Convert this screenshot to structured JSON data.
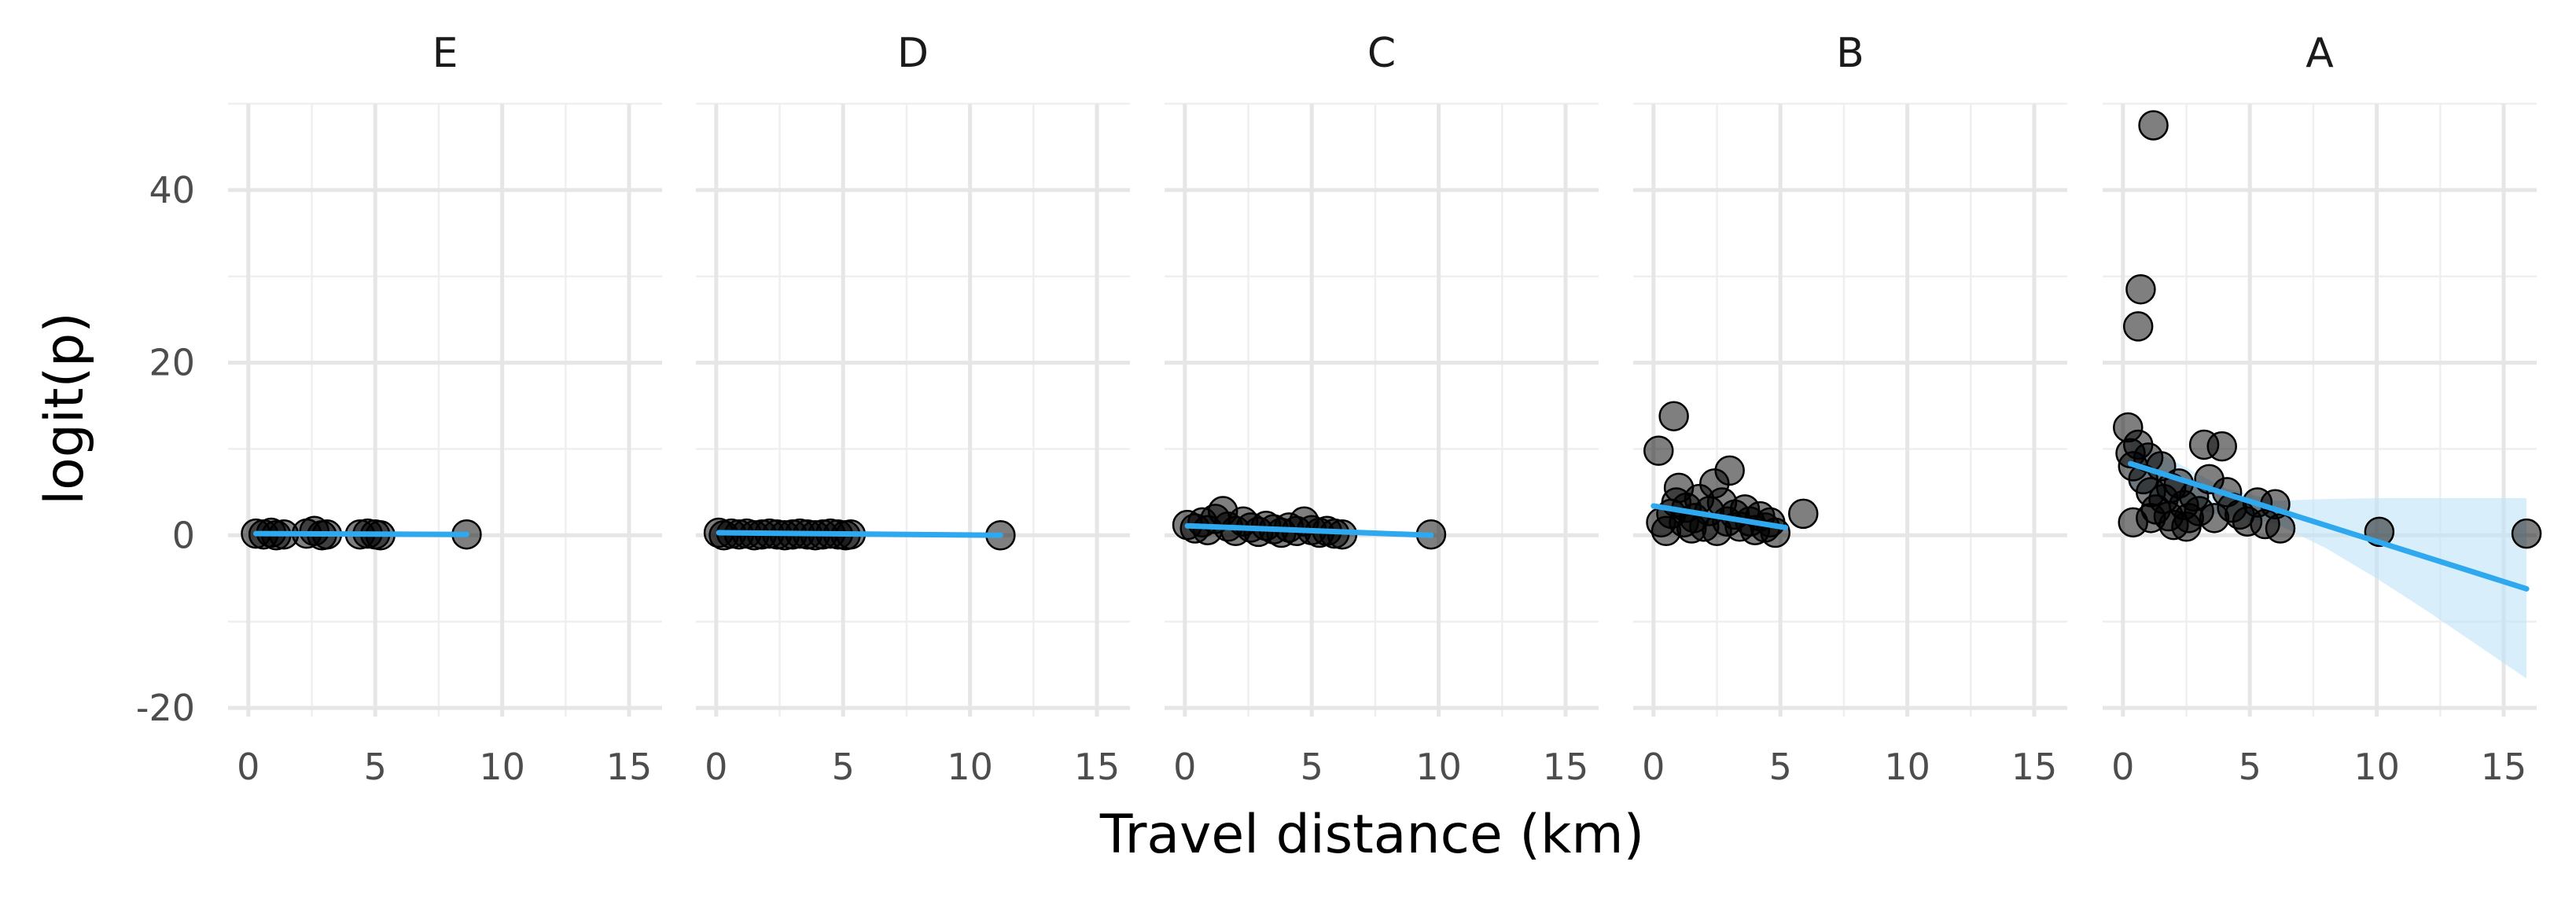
{
  "chart_data": {
    "type": "scatter",
    "xlabel": "Travel distance (km)",
    "ylabel": "logit(p)",
    "xlim": [
      -0.8,
      16.3
    ],
    "ylim": [
      -21,
      50
    ],
    "x_ticks": [
      0,
      5,
      10,
      15
    ],
    "y_ticks": [
      -20,
      0,
      20,
      40
    ],
    "grid": true,
    "legend": "none",
    "colors": {
      "points": "#000000",
      "fit_line": "#2ea8ee",
      "ribbon": "#bfe3f8",
      "grid": "#e6e6e6"
    },
    "facets": [
      {
        "label": "E",
        "points": [
          [
            0.3,
            0.2
          ],
          [
            0.6,
            0.1
          ],
          [
            0.9,
            0.3
          ],
          [
            1.1,
            0.0
          ],
          [
            1.4,
            0.1
          ],
          [
            2.3,
            0.2
          ],
          [
            2.6,
            0.5
          ],
          [
            2.9,
            0.0
          ],
          [
            3.1,
            0.1
          ],
          [
            4.4,
            0.1
          ],
          [
            4.7,
            0.2
          ],
          [
            5.0,
            0.1
          ],
          [
            5.2,
            0.0
          ],
          [
            8.6,
            0.1
          ]
        ],
        "fit": {
          "x": [
            0.3,
            8.6
          ],
          "y": [
            0.2,
            0.1
          ]
        },
        "ci": null
      },
      {
        "label": "D",
        "points": [
          [
            0.1,
            0.3
          ],
          [
            0.3,
            0.0
          ],
          [
            0.6,
            0.2
          ],
          [
            0.9,
            0.1
          ],
          [
            1.2,
            0.2
          ],
          [
            1.5,
            0.0
          ],
          [
            1.8,
            0.1
          ],
          [
            2.1,
            0.2
          ],
          [
            2.4,
            0.1
          ],
          [
            2.7,
            0.0
          ],
          [
            3.0,
            0.1
          ],
          [
            3.3,
            0.2
          ],
          [
            3.6,
            0.1
          ],
          [
            3.9,
            0.0
          ],
          [
            4.2,
            0.1
          ],
          [
            4.5,
            0.2
          ],
          [
            4.8,
            0.1
          ],
          [
            5.1,
            0.0
          ],
          [
            5.3,
            0.1
          ],
          [
            11.2,
            0.0
          ]
        ],
        "fit": {
          "x": [
            0.1,
            11.2
          ],
          "y": [
            0.3,
            0.0
          ]
        },
        "ci": null
      },
      {
        "label": "C",
        "points": [
          [
            0.1,
            1.2
          ],
          [
            0.4,
            0.8
          ],
          [
            0.7,
            1.5
          ],
          [
            0.9,
            0.6
          ],
          [
            1.2,
            1.9
          ],
          [
            1.5,
            2.8
          ],
          [
            1.7,
            1.0
          ],
          [
            2.0,
            0.5
          ],
          [
            2.3,
            1.6
          ],
          [
            2.6,
            0.9
          ],
          [
            2.9,
            0.4
          ],
          [
            3.2,
            1.1
          ],
          [
            3.5,
            0.7
          ],
          [
            3.8,
            0.3
          ],
          [
            4.1,
            0.9
          ],
          [
            4.4,
            0.5
          ],
          [
            4.7,
            1.6
          ],
          [
            5.0,
            0.6
          ],
          [
            5.3,
            0.3
          ],
          [
            5.6,
            0.5
          ],
          [
            5.9,
            0.2
          ],
          [
            6.2,
            0.1
          ],
          [
            9.7,
            0.1
          ]
        ],
        "fit": {
          "x": [
            0.1,
            9.7
          ],
          "y": [
            1.1,
            0.0
          ]
        },
        "ci": null
      },
      {
        "label": "B",
        "points": [
          [
            0.2,
            9.8
          ],
          [
            0.8,
            13.8
          ],
          [
            0.3,
            1.5
          ],
          [
            0.5,
            0.5
          ],
          [
            0.7,
            2.5
          ],
          [
            0.9,
            3.8
          ],
          [
            1.0,
            5.5
          ],
          [
            1.2,
            1.5
          ],
          [
            1.3,
            3.2
          ],
          [
            1.5,
            0.8
          ],
          [
            1.6,
            2.0
          ],
          [
            1.8,
            4.2
          ],
          [
            2.0,
            1.0
          ],
          [
            2.2,
            2.8
          ],
          [
            2.4,
            6.0
          ],
          [
            2.5,
            0.5
          ],
          [
            2.7,
            3.8
          ],
          [
            2.9,
            1.6
          ],
          [
            3.0,
            7.5
          ],
          [
            3.2,
            2.4
          ],
          [
            3.4,
            1.0
          ],
          [
            3.6,
            3.0
          ],
          [
            3.8,
            1.6
          ],
          [
            4.0,
            0.6
          ],
          [
            4.2,
            2.2
          ],
          [
            4.4,
            0.9
          ],
          [
            4.6,
            1.5
          ],
          [
            4.8,
            0.3
          ],
          [
            5.9,
            2.5
          ]
        ],
        "fit": {
          "x": [
            0.0,
            5.2
          ],
          "y": [
            3.4,
            0.9
          ]
        },
        "ci": null
      },
      {
        "label": "A",
        "points": [
          [
            1.2,
            47.5
          ],
          [
            0.7,
            28.5
          ],
          [
            0.6,
            24.2
          ],
          [
            0.2,
            12.5
          ],
          [
            0.3,
            9.5
          ],
          [
            0.4,
            8.0
          ],
          [
            0.6,
            10.5
          ],
          [
            0.8,
            6.5
          ],
          [
            1.0,
            9.0
          ],
          [
            1.1,
            5.0
          ],
          [
            1.3,
            3.0
          ],
          [
            1.5,
            8.0
          ],
          [
            1.6,
            4.2
          ],
          [
            1.8,
            2.2
          ],
          [
            1.9,
            5.5
          ],
          [
            2.0,
            1.2
          ],
          [
            2.2,
            6.0
          ],
          [
            2.4,
            3.5
          ],
          [
            2.6,
            2.0
          ],
          [
            2.8,
            4.5
          ],
          [
            2.5,
            1.0
          ],
          [
            3.0,
            2.8
          ],
          [
            3.2,
            10.5
          ],
          [
            3.4,
            6.5
          ],
          [
            3.6,
            2.0
          ],
          [
            3.9,
            10.3
          ],
          [
            4.1,
            5.0
          ],
          [
            4.3,
            3.2
          ],
          [
            4.6,
            2.4
          ],
          [
            4.9,
            1.6
          ],
          [
            5.3,
            3.8
          ],
          [
            5.6,
            1.3
          ],
          [
            6.0,
            3.6
          ],
          [
            6.2,
            0.8
          ],
          [
            0.4,
            1.5
          ],
          [
            1.1,
            2.0
          ],
          [
            10.1,
            0.4
          ],
          [
            15.9,
            0.2
          ]
        ],
        "fit": {
          "x": [
            0.3,
            15.9
          ],
          "y": [
            8.3,
            -6.2
          ]
        },
        "ci": {
          "x": [
            0.3,
            2,
            4,
            6,
            8,
            10,
            12,
            14,
            15.9
          ],
          "lower": [
            5.2,
            3.6,
            2.3,
            1.4,
            -1.5,
            -5.0,
            -8.8,
            -12.8,
            -16.6
          ],
          "upper": [
            11.2,
            8.6,
            5.5,
            4.0,
            4.2,
            4.3,
            4.3,
            4.3,
            4.3
          ]
        }
      }
    ]
  }
}
